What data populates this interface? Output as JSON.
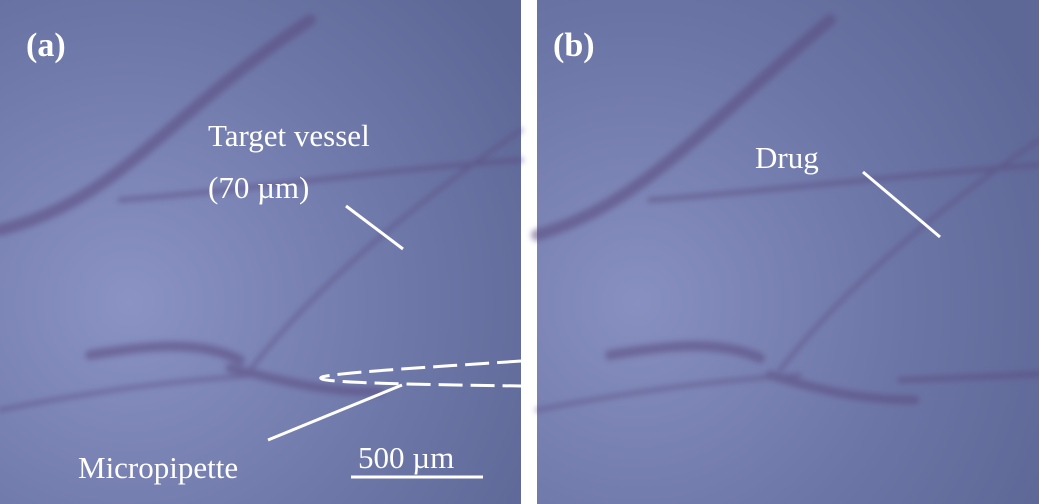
{
  "panels": [
    {
      "label": "(a)",
      "annotations": [
        "Target vessel",
        "(70 µm)",
        "Micropipette"
      ],
      "scale_bar": "500 µm"
    },
    {
      "label": "(b)",
      "annotations": [
        "Drug"
      ]
    }
  ]
}
